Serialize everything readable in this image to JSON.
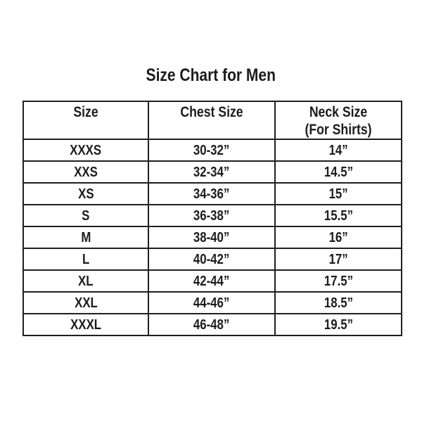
{
  "page": {
    "title": "Size Chart for Men",
    "background_color": "#ffffff",
    "text_color": "#1c1c1c",
    "border_color": "#1f1f1f"
  },
  "table": {
    "headers": {
      "size": "Size",
      "chest": "Chest Size",
      "neck_line1": "Neck Size",
      "neck_line2": "(For Shirts)"
    },
    "rows": [
      {
        "size": "XXXS",
        "chest": "30-32”",
        "neck": "14”"
      },
      {
        "size": "XXS",
        "chest": "32-34”",
        "neck": "14.5”"
      },
      {
        "size": "XS",
        "chest": "34-36”",
        "neck": "15”"
      },
      {
        "size": "S",
        "chest": "36-38”",
        "neck": "15.5”"
      },
      {
        "size": "M",
        "chest": "38-40”",
        "neck": "16”"
      },
      {
        "size": "L",
        "chest": "40-42”",
        "neck": "17”"
      },
      {
        "size": "XL",
        "chest": "42-44”",
        "neck": "17.5”"
      },
      {
        "size": "XXL",
        "chest": "44-46”",
        "neck": "18.5”"
      },
      {
        "size": "XXXL",
        "chest": "46-48”",
        "neck": "19.5”"
      }
    ]
  },
  "chart_data": {
    "type": "table",
    "title": "Size Chart for Men",
    "columns": [
      "Size",
      "Chest Size",
      "Neck Size (For Shirts)"
    ],
    "rows": [
      [
        "XXXS",
        "30-32”",
        "14”"
      ],
      [
        "XXS",
        "32-34”",
        "14.5”"
      ],
      [
        "XS",
        "34-36”",
        "15”"
      ],
      [
        "S",
        "36-38”",
        "15.5”"
      ],
      [
        "M",
        "38-40”",
        "16”"
      ],
      [
        "L",
        "40-42”",
        "17”"
      ],
      [
        "XL",
        "42-44”",
        "17.5”"
      ],
      [
        "XXL",
        "44-46”",
        "18.5”"
      ],
      [
        "XXXL",
        "46-48”",
        "19.5”"
      ]
    ]
  }
}
